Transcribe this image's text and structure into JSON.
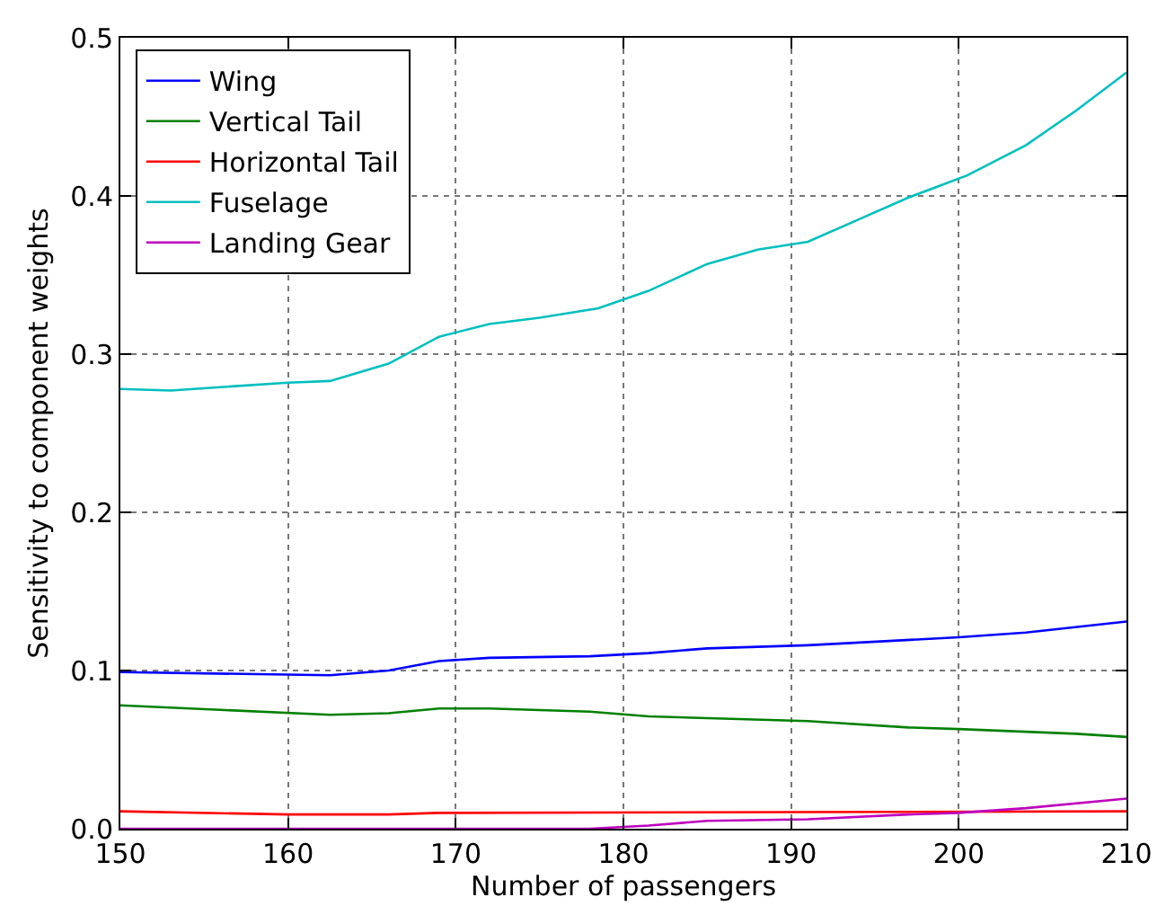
{
  "chart_data": {
    "type": "line",
    "xlabel": "Number of passengers",
    "ylabel": "Sensitivity to component weights",
    "xlim": [
      150,
      210
    ],
    "xticks": [
      150,
      160,
      170,
      180,
      190,
      200,
      210
    ],
    "ylim": [
      0,
      0.5
    ],
    "yticks": [
      {
        "value": 0,
        "label": "0.0"
      },
      0.1,
      0.2,
      0.3,
      0.4,
      0.5
    ],
    "grid": true,
    "legend": "top left",
    "line_style": "solid",
    "marker": "none",
    "series": [
      {
        "name": "Wing",
        "color": "#0000ff",
        "x": [
          150,
          162.5,
          166,
          169,
          172,
          178,
          181.5,
          185,
          191,
          200,
          204,
          210
        ],
        "values": [
          0.099,
          0.097,
          0.1,
          0.106,
          0.108,
          0.109,
          0.111,
          0.114,
          0.116,
          0.121,
          0.124,
          0.131
        ]
      },
      {
        "name": "Vertical Tail",
        "color": "#008000",
        "x": [
          150,
          162.5,
          166,
          169,
          172,
          178,
          181.5,
          191,
          197,
          200,
          207,
          210
        ],
        "values": [
          0.078,
          0.072,
          0.073,
          0.076,
          0.076,
          0.074,
          0.071,
          0.068,
          0.064,
          0.063,
          0.06,
          0.058
        ]
      },
      {
        "name": "Horizontal Tail",
        "color": "#ff0000",
        "x": [
          150,
          160,
          166,
          169,
          210
        ],
        "values": [
          0.011,
          0.009,
          0.009,
          0.01,
          0.011
        ]
      },
      {
        "name": "Fuselage",
        "color": "#00bfbf",
        "x": [
          150,
          153,
          160,
          162.5,
          166,
          169,
          172,
          175,
          178.5,
          181.5,
          185,
          188,
          191,
          194,
          197,
          200.5,
          204,
          207,
          210
        ],
        "values": [
          0.278,
          0.277,
          0.282,
          0.283,
          0.294,
          0.311,
          0.319,
          0.323,
          0.329,
          0.34,
          0.357,
          0.366,
          0.371,
          0.385,
          0.399,
          0.413,
          0.432,
          0.454,
          0.478
        ]
      },
      {
        "name": "Landing Gear",
        "color": "#bf00bf",
        "x": [
          150,
          178,
          181.5,
          185,
          191,
          197,
          200,
          204,
          210
        ],
        "values": [
          0,
          0,
          0.002,
          0.005,
          0.006,
          0.009,
          0.01,
          0.013,
          0.019
        ]
      }
    ]
  }
}
